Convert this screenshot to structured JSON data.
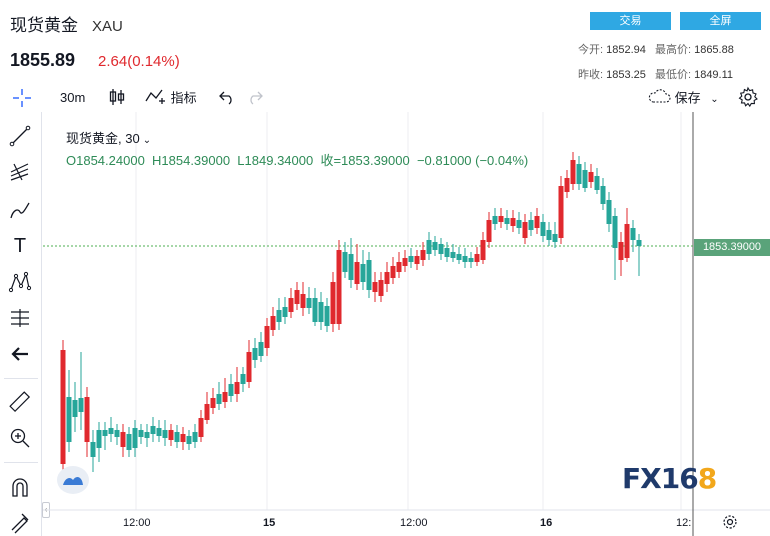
{
  "header": {
    "name": "现货黄金",
    "symbol": "XAU",
    "price": "1855.89",
    "change": "2.64(0.14%)",
    "trade_label": "交易",
    "fullscreen_label": "全屏"
  },
  "stats": {
    "open_label": "今开:",
    "open": "1852.94",
    "high_label": "最高价:",
    "high": "1865.88",
    "prev_close_label": "昨收:",
    "prev_close": "1853.25",
    "low_label": "最低价:",
    "low": "1849.11"
  },
  "toolbar": {
    "interval": "30m",
    "indicators_label": "指标",
    "save_label": "保存"
  },
  "legend": {
    "name": "现货黄金",
    "interval": "30",
    "ohlc": "O1854.24000  H1854.39000  L1849.34000  收=1853.39000  −0.81000 (−0.04%)"
  },
  "price_tag": "1853.39000",
  "x_axis": [
    "12:00",
    "15",
    "12:00",
    "16",
    "12:"
  ],
  "colors": {
    "up": "#26a69a",
    "down": "#e0292e",
    "accent": "#2fa8e3",
    "price_line": "#4caf50"
  },
  "logo": {
    "text": "FX16",
    "accent": "8"
  }
}
